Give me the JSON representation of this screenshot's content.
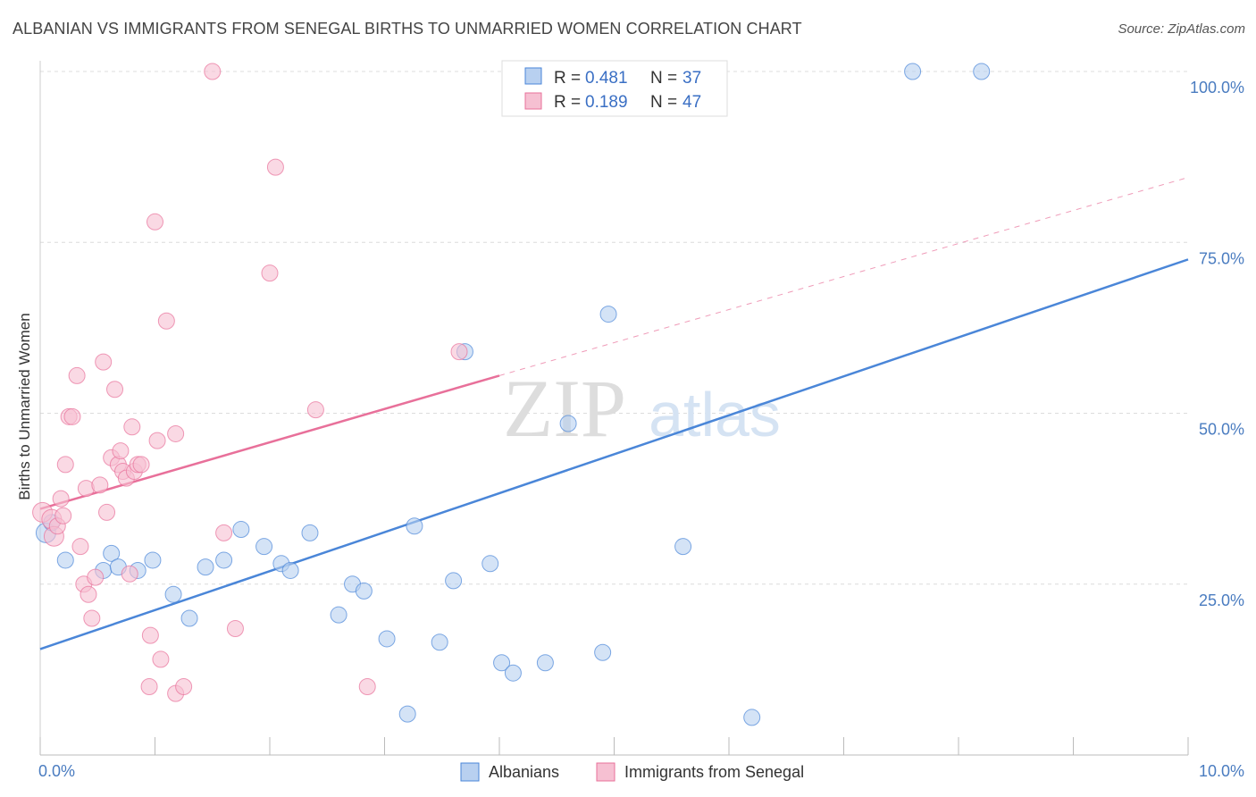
{
  "title": "ALBANIAN VS IMMIGRANTS FROM SENEGAL BIRTHS TO UNMARRIED WOMEN CORRELATION CHART",
  "source": "Source: ZipAtlas.com",
  "watermark": {
    "zip": "ZIP",
    "atlas": "atlas"
  },
  "colors": {
    "blue": "#4a86d8",
    "blue_fill": "#b8d0f0",
    "pink": "#e8709a",
    "pink_fill": "#f6c0d2",
    "axis_text": "#4a7cc0"
  },
  "legend": {
    "r_label": "R = ",
    "n_label": "N = ",
    "rows": [
      {
        "r": "0.481",
        "n": "37"
      },
      {
        "r": "0.189",
        "n": "47"
      }
    ]
  },
  "chart_data": {
    "type": "scatter",
    "title": "ALBANIAN VS IMMIGRANTS FROM SENEGAL BIRTHS TO UNMARRIED WOMEN CORRELATION CHART",
    "xlabel": "",
    "ylabel": "Births to Unmarried Women",
    "xlim": [
      0,
      10
    ],
    "ylim": [
      0,
      100
    ],
    "x_tick_labels": [
      "0.0%",
      "10.0%"
    ],
    "y_tick_labels": [
      "100.0%",
      "75.0%",
      "50.0%",
      "25.0%"
    ],
    "y_ticks": [
      100,
      75,
      50,
      25
    ],
    "grid": true,
    "legend_position": "top-center",
    "series": [
      {
        "name": "Albanians",
        "color": "#4a86d8",
        "points": [
          [
            0.05,
            32.5
          ],
          [
            0.1,
            34
          ],
          [
            0.22,
            28.5
          ],
          [
            0.62,
            29.5
          ],
          [
            0.55,
            27
          ],
          [
            0.68,
            27.5
          ],
          [
            0.85,
            27
          ],
          [
            0.98,
            28.5
          ],
          [
            1.16,
            23.5
          ],
          [
            1.3,
            20
          ],
          [
            1.44,
            27.5
          ],
          [
            1.6,
            28.5
          ],
          [
            1.75,
            33
          ],
          [
            1.95,
            30.5
          ],
          [
            2.1,
            28
          ],
          [
            2.18,
            27
          ],
          [
            2.35,
            32.5
          ],
          [
            2.6,
            20.5
          ],
          [
            2.72,
            25
          ],
          [
            2.82,
            24
          ],
          [
            3.02,
            17
          ],
          [
            3.2,
            6
          ],
          [
            3.26,
            33.5
          ],
          [
            3.48,
            16.5
          ],
          [
            3.6,
            25.5
          ],
          [
            3.7,
            59
          ],
          [
            3.92,
            28
          ],
          [
            4.02,
            13.5
          ],
          [
            4.12,
            12
          ],
          [
            4.4,
            13.5
          ],
          [
            4.6,
            48.5
          ],
          [
            4.9,
            15
          ],
          [
            4.95,
            64.5
          ],
          [
            5.6,
            30.5
          ],
          [
            6.2,
            5.5
          ],
          [
            7.6,
            100
          ],
          [
            8.2,
            100
          ]
        ],
        "trend": [
          [
            0,
            15.5
          ],
          [
            10,
            72.5
          ]
        ]
      },
      {
        "name": "Immigrants from Senegal",
        "color": "#e8709a",
        "points": [
          [
            0.02,
            35.5
          ],
          [
            0.1,
            34.5
          ],
          [
            0.12,
            32
          ],
          [
            0.15,
            33.5
          ],
          [
            0.18,
            37.5
          ],
          [
            0.2,
            35
          ],
          [
            0.22,
            42.5
          ],
          [
            0.25,
            49.5
          ],
          [
            0.28,
            49.5
          ],
          [
            0.32,
            55.5
          ],
          [
            0.35,
            30.5
          ],
          [
            0.38,
            25
          ],
          [
            0.4,
            39
          ],
          [
            0.42,
            23.5
          ],
          [
            0.45,
            20
          ],
          [
            0.48,
            26
          ],
          [
            0.52,
            39.5
          ],
          [
            0.55,
            57.5
          ],
          [
            0.58,
            35.5
          ],
          [
            0.62,
            43.5
          ],
          [
            0.65,
            53.5
          ],
          [
            0.68,
            42.5
          ],
          [
            0.7,
            44.5
          ],
          [
            0.72,
            41.5
          ],
          [
            0.75,
            40.5
          ],
          [
            0.78,
            26.5
          ],
          [
            0.8,
            48
          ],
          [
            0.82,
            41.5
          ],
          [
            0.85,
            42.5
          ],
          [
            0.88,
            42.5
          ],
          [
            0.95,
            10
          ],
          [
            0.96,
            17.5
          ],
          [
            1.0,
            78
          ],
          [
            1.02,
            46
          ],
          [
            1.05,
            14
          ],
          [
            1.1,
            63.5
          ],
          [
            1.18,
            47
          ],
          [
            1.18,
            9
          ],
          [
            1.25,
            10
          ],
          [
            1.5,
            100
          ],
          [
            1.6,
            32.5
          ],
          [
            1.7,
            18.5
          ],
          [
            2.0,
            70.5
          ],
          [
            2.05,
            86
          ],
          [
            2.4,
            50.5
          ],
          [
            2.85,
            10
          ],
          [
            3.65,
            59
          ]
        ],
        "trend": [
          [
            0,
            36
          ],
          [
            4.0,
            55.5
          ]
        ],
        "trend_dashed": [
          [
            4.0,
            55.5
          ],
          [
            10,
            84.5
          ]
        ]
      }
    ]
  }
}
